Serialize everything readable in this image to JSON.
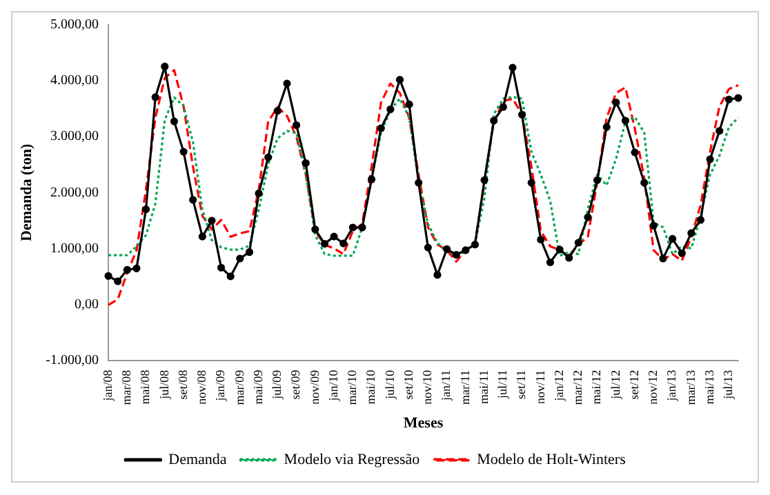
{
  "chart_data": {
    "type": "line",
    "xlabel": "Meses",
    "ylabel": "Demanda (ton)",
    "categories": [
      "jan/08",
      null,
      "mar/08",
      null,
      "mai/08",
      null,
      "jul/08",
      null,
      "set/08",
      null,
      "nov/08",
      null,
      "jan/09",
      null,
      "mar/09",
      null,
      "mai/09",
      null,
      "jul/09",
      null,
      "set/09",
      null,
      "nov/09",
      null,
      "jan/10",
      null,
      "mar/10",
      null,
      "mai/10",
      null,
      "jul/10",
      null,
      "set/10",
      null,
      "nov/10",
      null,
      "jan/11",
      null,
      "mar/11",
      null,
      "mai/11",
      null,
      "jul/11",
      null,
      "set/11",
      null,
      "nov/11",
      null,
      "jan/12",
      null,
      "mar/12",
      null,
      "mai/12",
      null,
      "jul/12",
      null,
      "set/12",
      null,
      "nov/12",
      null,
      "jan/13",
      null,
      "mar/13",
      null,
      "mai/13",
      null,
      "jul/13",
      null
    ],
    "series": [
      {
        "name": "Demanda",
        "color": "#000000",
        "marker": "circle",
        "line_style": "solid",
        "values": [
          508,
          413,
          617,
          644,
          1700,
          3706,
          4255,
          3272,
          2730,
          1870,
          1213,
          1497,
          657,
          501,
          820,
          935,
          1985,
          2629,
          3462,
          3950,
          3205,
          2527,
          1341,
          1084,
          1213,
          1091,
          1375,
          1375,
          2236,
          3150,
          3489,
          4018,
          3577,
          2175,
          1016,
          528,
          989,
          888,
          969,
          1070,
          2222,
          3286,
          3530,
          4234,
          3394,
          2175,
          1159,
          752,
          982,
          833,
          1104,
          1558,
          2222,
          3171,
          3611,
          3286,
          2717,
          2175,
          1409,
          820,
          1172,
          915,
          1274,
          1511,
          2595,
          3103,
          3665,
          3692
        ]
      },
      {
        "name": "Modelo via Regressão",
        "color": "#00a651",
        "marker": "none",
        "line_style": "dotted",
        "values": [
          880,
          880,
          880,
          1036,
          1240,
          1800,
          3300,
          3700,
          3550,
          2900,
          1700,
          1150,
          1020,
          980,
          980,
          1050,
          1700,
          2500,
          2970,
          3100,
          3070,
          2320,
          1240,
          900,
          870,
          870,
          870,
          1375,
          2250,
          3070,
          3475,
          3680,
          3340,
          2190,
          1440,
          1100,
          935,
          900,
          935,
          1100,
          1900,
          3400,
          3680,
          3710,
          3680,
          2730,
          2320,
          1850,
          870,
          935,
          900,
          1710,
          2320,
          2130,
          2600,
          3270,
          3350,
          3070,
          1460,
          1380,
          900,
          1040,
          1000,
          1580,
          2320,
          2660,
          3170,
          3340
        ]
      },
      {
        "name": "Modelo de Holt-Winters",
        "color": "#ff0000",
        "marker": "none",
        "line_style": "dashed",
        "values": [
          -10,
          90,
          560,
          970,
          2050,
          3340,
          4050,
          4190,
          3540,
          2460,
          1580,
          1340,
          1510,
          1210,
          1270,
          1310,
          2050,
          3270,
          3530,
          3370,
          3000,
          2320,
          1310,
          1070,
          1000,
          900,
          1310,
          1440,
          2460,
          3610,
          3950,
          3780,
          3340,
          2320,
          1380,
          1070,
          970,
          765,
          970,
          1100,
          2190,
          3270,
          3630,
          3680,
          3400,
          2460,
          1310,
          1040,
          970,
          870,
          1070,
          1210,
          2190,
          3340,
          3780,
          3880,
          3140,
          2260,
          970,
          800,
          900,
          780,
          1210,
          1780,
          2730,
          3540,
          3850,
          3920
        ]
      }
    ],
    "ylim": [
      -1000,
      5000
    ],
    "yticks": [
      {
        "value": -1000,
        "label": "-1.000,00"
      },
      {
        "value": 0,
        "label": "0,00"
      },
      {
        "value": 1000,
        "label": "1.000,00"
      },
      {
        "value": 2000,
        "label": "2.000,00"
      },
      {
        "value": 3000,
        "label": "3.000,00"
      },
      {
        "value": 4000,
        "label": "4.000,00"
      },
      {
        "value": 5000,
        "label": "5.000,00"
      }
    ],
    "grid": false,
    "legend": "bottom"
  }
}
